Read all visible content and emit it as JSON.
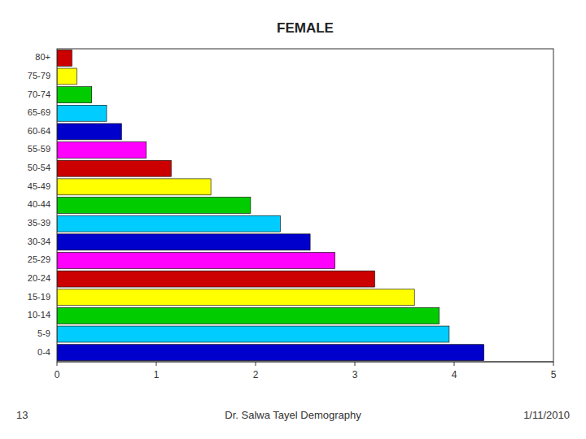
{
  "chart_data": {
    "type": "bar",
    "orientation": "horizontal",
    "title": "FEMALE",
    "categories": [
      "80+",
      "75-79",
      "70-74",
      "65-69",
      "60-64",
      "55-59",
      "50-54",
      "45-49",
      "40-44",
      "35-39",
      "30-34",
      "25-29",
      "20-24",
      "15-19",
      "10-14",
      "5-9",
      "0-4"
    ],
    "values": [
      0.15,
      0.2,
      0.35,
      0.5,
      0.65,
      0.9,
      1.15,
      1.55,
      1.95,
      2.25,
      2.55,
      2.8,
      3.2,
      3.6,
      3.85,
      3.95,
      4.3
    ],
    "colors": [
      "#cc0000",
      "#ffff00",
      "#00cc00",
      "#00ccff",
      "#0000cc",
      "#ff00ff",
      "#cc0000",
      "#ffff00",
      "#00cc00",
      "#00ccff",
      "#0000cc",
      "#ff00ff",
      "#cc0000",
      "#ffff00",
      "#00cc00",
      "#00ccff",
      "#0000cc"
    ],
    "xlim": [
      0,
      5
    ],
    "xticks": [
      0,
      1,
      2,
      3,
      4,
      5
    ],
    "grid": false,
    "annotations": [
      "13",
      "Dr. Salwa Tayel Demography",
      "1/11/2010"
    ]
  }
}
